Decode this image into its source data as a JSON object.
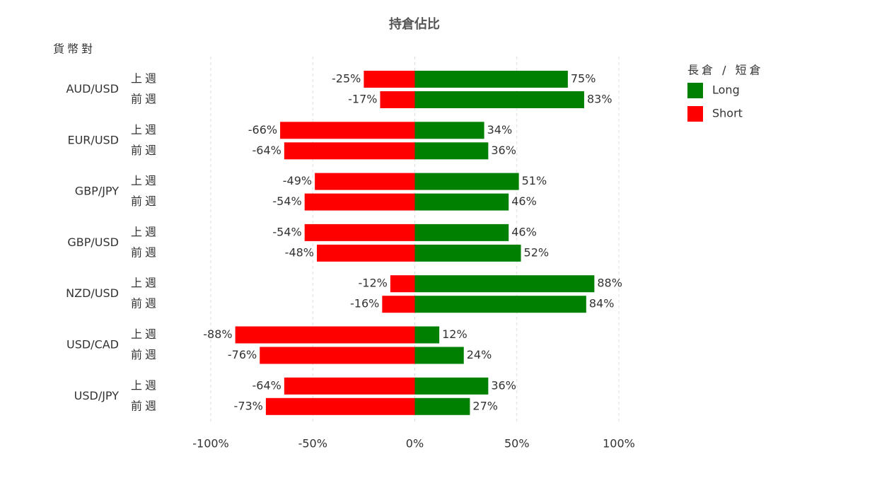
{
  "chart_data": {
    "type": "diverging-bar",
    "title": "持倉佔比",
    "y_label": "貨幣對",
    "legend_title": "長倉 / 短倉",
    "groups": [
      "AUD/USD",
      "EUR/USD",
      "GBP/JPY",
      "GBP/USD",
      "NZD/USD",
      "USD/CAD",
      "USD/JPY"
    ],
    "subgroups": [
      "上週",
      "前週"
    ],
    "series": [
      {
        "name": "Long",
        "color": "#008000",
        "values": [
          75,
          83,
          34,
          36,
          51,
          46,
          46,
          52,
          88,
          84,
          12,
          24,
          36,
          27
        ],
        "value_labels": [
          "75%",
          "83%",
          "34%",
          "36%",
          "51%",
          "46%",
          "46%",
          "52%",
          "88%",
          "84%",
          "12%",
          "24%",
          "36%",
          "27%"
        ]
      },
      {
        "name": "Short",
        "color": "#ff0000",
        "values": [
          -25,
          -17,
          -66,
          -64,
          -49,
          -54,
          -54,
          -48,
          -12,
          -16,
          -88,
          -76,
          -64,
          -73
        ],
        "value_labels": [
          "-25%",
          "-17%",
          "-66%",
          "-64%",
          "-49%",
          "-54%",
          "-54%",
          "-48%",
          "-12%",
          "-16%",
          "-88%",
          "-76%",
          "-64%",
          "-73%"
        ]
      }
    ],
    "xlim": [
      -100,
      100
    ],
    "xticks": [
      {
        "value": -100,
        "label": "-100%"
      },
      {
        "value": -50,
        "label": "-50%"
      },
      {
        "value": 0,
        "label": "0%"
      },
      {
        "value": 50,
        "label": "50%"
      },
      {
        "value": 100,
        "label": "100%"
      }
    ],
    "grid": true
  }
}
